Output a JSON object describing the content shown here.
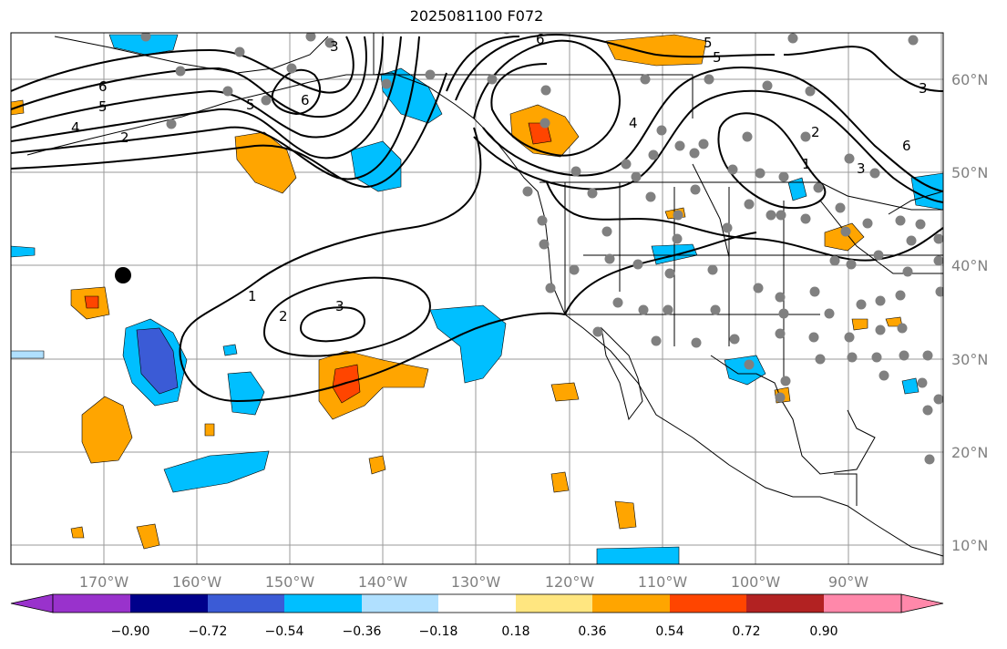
{
  "title": "2025081100 F072",
  "colors": {
    "ocean": "#ffffff",
    "grid": "#9a9a9a",
    "coast": "#000000",
    "station": "#808080"
  },
  "lon_labels": [
    "170°W",
    "160°W",
    "150°W",
    "140°W",
    "130°W",
    "120°W",
    "110°W",
    "100°W",
    "90°W"
  ],
  "lat_labels": [
    "60°N",
    "50°N",
    "40°N",
    "30°N",
    "20°N",
    "10°N"
  ],
  "contour_labels": [
    "6",
    "5",
    "4",
    "2",
    "3",
    "6",
    "5",
    "6",
    "5",
    "4",
    "3",
    "2",
    "1",
    "6",
    "5",
    "3",
    "1",
    "2",
    "3"
  ],
  "colorbar": {
    "ticks": [
      "−0.90",
      "−0.72",
      "−0.54",
      "−0.36",
      "−0.18",
      "0.18",
      "0.36",
      "0.54",
      "0.72",
      "0.90"
    ],
    "colors": [
      "#9932cc",
      "#00008b",
      "#3b5bd6",
      "#00bfff",
      "#b0e0ff",
      "#ffffff",
      "#ffe680",
      "#ffa500",
      "#ff4500",
      "#b22222",
      "#ff88aa"
    ]
  }
}
